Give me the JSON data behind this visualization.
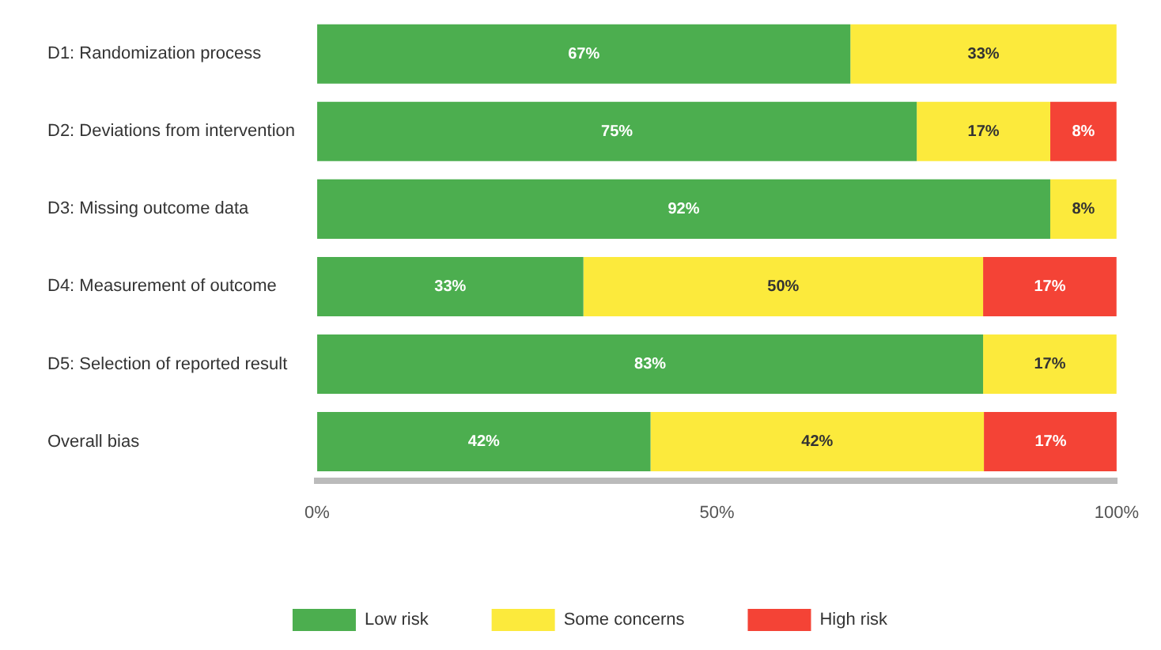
{
  "chart_data": {
    "type": "bar",
    "orientation": "horizontal",
    "stacked": true,
    "categories": [
      "D1: Randomization process",
      "D2: Deviations from intervention",
      "D3: Missing outcome data",
      "D4: Measurement of outcome",
      "D5: Selection of reported result",
      "Overall bias"
    ],
    "series": [
      {
        "name": "Low risk",
        "color": "#4cae4f",
        "values": [
          66.7,
          75,
          91.7,
          33.3,
          83.3,
          41.7
        ],
        "value_labels": [
          "67%",
          "75%",
          "92%",
          "33%",
          "83%",
          "42%"
        ]
      },
      {
        "name": "Some concerns",
        "color": "#fcea3c",
        "values": [
          33.3,
          16.7,
          8.3,
          50,
          16.7,
          41.7
        ],
        "value_labels": [
          "33%",
          "17%",
          "8%",
          "50%",
          "17%",
          "42%"
        ]
      },
      {
        "name": "High risk",
        "color": "#f44336",
        "values": [
          null,
          8.3,
          null,
          16.7,
          null,
          16.7
        ],
        "value_labels": [
          null,
          "8%",
          null,
          "17%",
          null,
          "17%"
        ]
      }
    ],
    "xlim": [
      0,
      100
    ],
    "xticks": [
      {
        "value": 0,
        "label": "0%"
      },
      {
        "value": 50,
        "label": "50%"
      },
      {
        "value": 100,
        "label": "100%"
      }
    ],
    "grid": false,
    "legend": "bottom"
  }
}
